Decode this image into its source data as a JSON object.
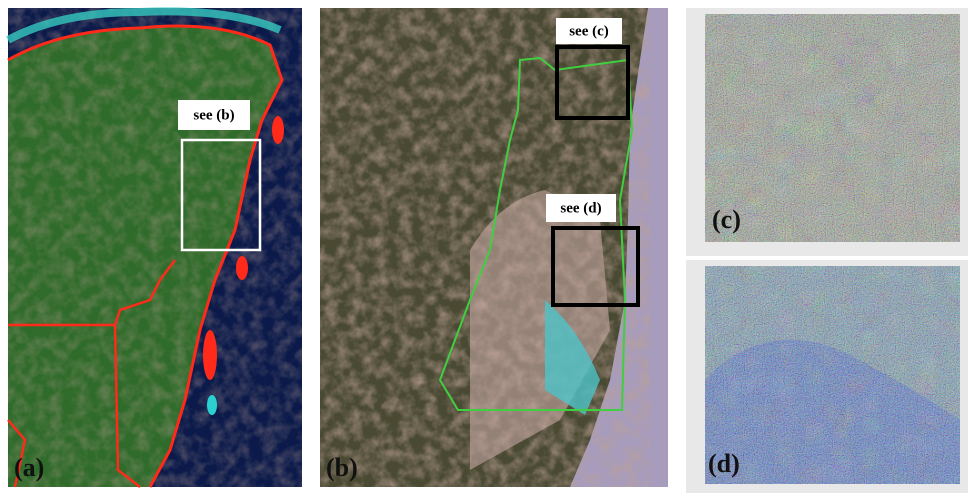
{
  "panel_a": {
    "label": "(a)",
    "callout": "see (b)"
  },
  "panel_b": {
    "label": "(b)",
    "callouts": [
      "see (c)",
      "see (d)"
    ]
  },
  "panel_c": {
    "label": "(c)"
  },
  "panel_d": {
    "label": "(d)"
  }
}
